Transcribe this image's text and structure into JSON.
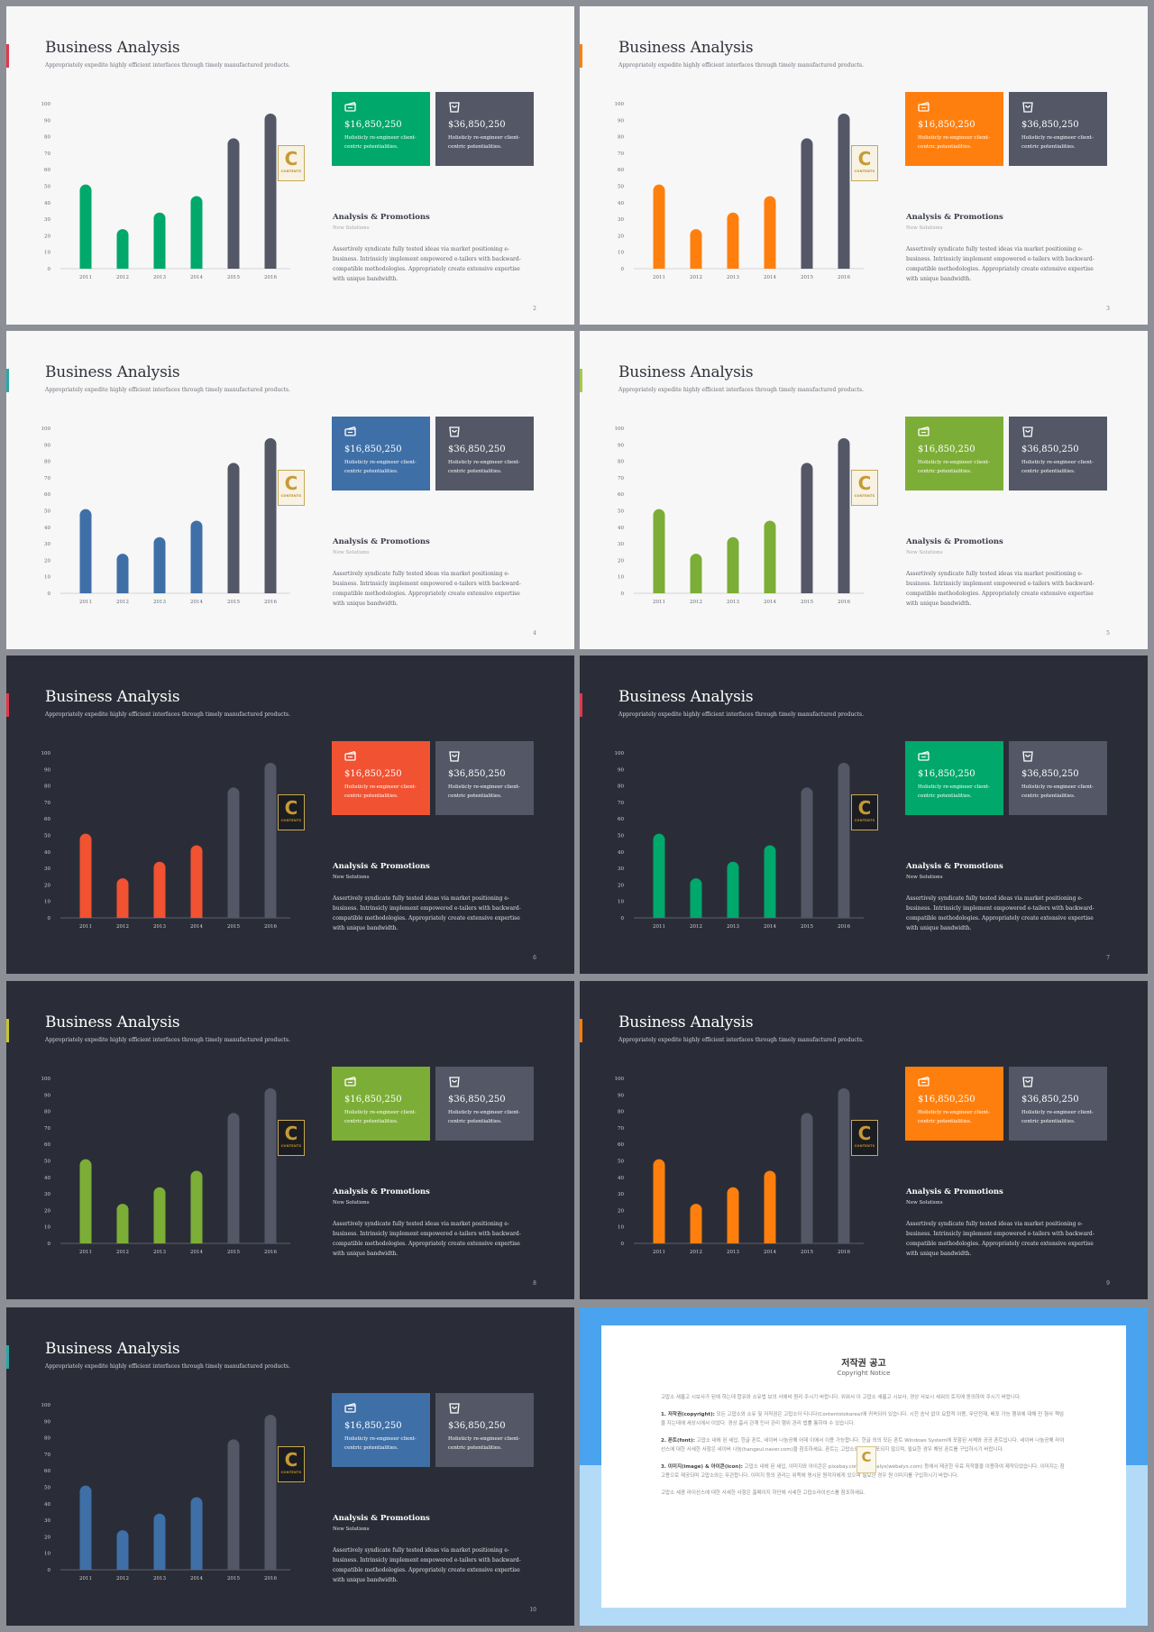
{
  "slides": [
    {
      "theme": "light",
      "accent": "#00a86b",
      "tab": "#e0384b",
      "page": "2"
    },
    {
      "theme": "light",
      "accent": "#ff7f0e",
      "tab": "#ff7f0e",
      "page": "3"
    },
    {
      "theme": "light",
      "accent": "#3f6fa7",
      "tab": "#2aa7a4",
      "page": "4"
    },
    {
      "theme": "light",
      "accent": "#7cae37",
      "tab": "#a4c94a",
      "page": "5"
    },
    {
      "theme": "dark",
      "accent": "#f15232",
      "tab": "#e0384b",
      "page": "6"
    },
    {
      "theme": "dark",
      "accent": "#00a86b",
      "tab": "#e0384b",
      "page": "7"
    },
    {
      "theme": "dark",
      "accent": "#7cae37",
      "tab": "#c5c630",
      "page": "8"
    },
    {
      "theme": "dark",
      "accent": "#ff7f0e",
      "tab": "#ff7f0e",
      "page": "9"
    },
    {
      "theme": "dark",
      "accent": "#3f6fa7",
      "tab": "#2aa7a4",
      "page": "10"
    }
  ],
  "content": {
    "title": "Business Analysis",
    "subtitle": "Appropriately expedite highly efficient interfaces through timely manufactured products.",
    "card1_amount": "$16,850,250",
    "card2_amount": "$36,850,250",
    "card_desc_line1": "Holisticly re-engineer client-",
    "card_desc_line2": "centric potentialities.",
    "card1_icon": "ticket-icon",
    "card2_icon": "shopping-bag-icon",
    "section_title": "Analysis & Promotions",
    "section_sub": "New Solutions",
    "body": "Assertively syndicate fully tested ideas via market positioning e-business. Intrinsicly implement empowered e-tailers with backward-compatible methodologies. Appropriately create extensive expertise with unique bandwidth.",
    "logo_letter": "C",
    "logo_text": "CONTENTS"
  },
  "chart_data": {
    "type": "bar",
    "categories": [
      "2011",
      "2012",
      "2013",
      "2014",
      "2015",
      "2016"
    ],
    "values": [
      51,
      24,
      34,
      44,
      79,
      94
    ],
    "highlight_categories": [
      "2011",
      "2012",
      "2013",
      "2014"
    ],
    "ylim": [
      0,
      100
    ],
    "yticks": [
      "0",
      "10",
      "20",
      "30",
      "40",
      "50",
      "60",
      "70",
      "80",
      "90",
      "100"
    ],
    "title": "",
    "xlabel": "",
    "ylabel": "",
    "grid": false,
    "legend": "none",
    "neutral_color_light": "#535766",
    "neutral_color_dark": "#535766"
  },
  "copyright": {
    "title": "저작권 공고",
    "subtitle": "Copyright Notice",
    "paragraphs": [
      {
        "lead": "",
        "text": "고맙소 새롭고 시보사가 된에 하는데 합유와 소유법 보의 사에비 원리 주시기 바랍니다. 위워서 이 고맙소 새롭고 시보사, 경상 사보시 세워의 토지에 동의하여 주시기 바랍니다."
      },
      {
        "lead": "1. 저작권(copyright):",
        "text": " 모든 고맙소와 소유 및 저작권은 고맙소아 티니다(Contentstokarea)에 귀속되어 있습니다. 시전 승낙 없이 요합적 이용, 무단전재, 배포 가능 행위에 대해 민 형사 책임을 지는데에 세상시에서 이었다. 경상 흡사 관계 민사 관리 행위 관리 법률 통하여 수 있습니다."
      },
      {
        "lead": "2. 폰트(font):",
        "text": " 고맙소 내에 된 세입, 한글 폰트, 네이버 나눔공해 어데 이에서 이용 가능합니다. 한글 외의 모든 폰트 Windows System에 포함된 서체와 공공 폰트입니다. 네이버 나눔공해 라이선스에 대한 사세한 사항은 네이버 나눔(hangeul.naver.com)을 참조하세요. 폰트는 고맙소와 함께 배포되지 않으며, 필요한 경우 해당 폰트를 구입하시기 바랍니다."
      },
      {
        "lead": "3. 이미지(image) & 아이콘(icon):",
        "text": " 고맙소 내에 된 세입, 이미지와 아이콘은 pixabay.com와 Webalys(webalys.com) 등에서 제공한 무료 저작물을 이용하여 제작되었습니다. 이미지는 참고용으로 제공되며 고맙소와는 무관합니다. 이미지 등의 권리는 위쪽에 명시된 원작자에게 있으며 필요한 경우 원 이미지를 구입하시기 바랍니다."
      },
      {
        "lead": "",
        "text": "고맙소 세콤 라이선스에 대한 사세한 사항은 홈페이지 하단에 사세한 고맙소라이선스를 참조하세요."
      }
    ]
  }
}
